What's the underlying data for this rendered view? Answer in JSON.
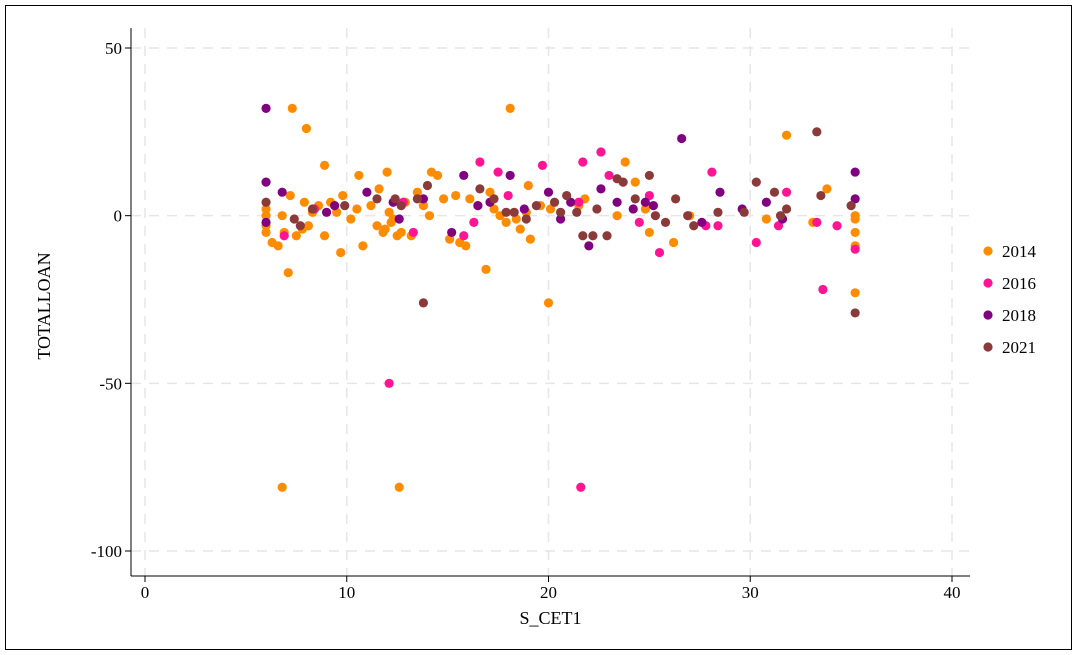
{
  "chart_data": {
    "type": "scatter",
    "title": "",
    "xlabel": "S_CET1",
    "ylabel": "TOTALLOAN",
    "xlim": [
      0,
      40
    ],
    "ylim": [
      -100,
      50
    ],
    "x_ticks": [
      "0",
      "10",
      "20",
      "30",
      "40"
    ],
    "y_ticks": [
      "50",
      "0",
      "-50",
      "-100"
    ],
    "grid": true,
    "legend_position": "right",
    "series": [
      {
        "name": "2014",
        "color": "#FF8C00",
        "points": [
          [
            6,
            -5
          ],
          [
            6,
            -3
          ],
          [
            6,
            0
          ],
          [
            6,
            2
          ],
          [
            6.3,
            -8
          ],
          [
            6.6,
            -9
          ],
          [
            6.8,
            0
          ],
          [
            6.9,
            -5
          ],
          [
            7.1,
            -17
          ],
          [
            7.2,
            6
          ],
          [
            7.3,
            32
          ],
          [
            7.5,
            -6
          ],
          [
            7.8,
            -4
          ],
          [
            7.9,
            4
          ],
          [
            8.0,
            26
          ],
          [
            8.1,
            -3
          ],
          [
            8.3,
            1
          ],
          [
            8.6,
            3
          ],
          [
            8.9,
            -6
          ],
          [
            8.9,
            15
          ],
          [
            9.2,
            4
          ],
          [
            9.5,
            1
          ],
          [
            9.7,
            -11
          ],
          [
            9.8,
            6
          ],
          [
            10.2,
            -1
          ],
          [
            10.5,
            2
          ],
          [
            10.6,
            12
          ],
          [
            10.8,
            -9
          ],
          [
            11.2,
            3
          ],
          [
            11.5,
            -3
          ],
          [
            11.6,
            8
          ],
          [
            11.8,
            -5
          ],
          [
            11.9,
            -4
          ],
          [
            12.0,
            13
          ],
          [
            12.1,
            1
          ],
          [
            12.2,
            -2
          ],
          [
            12.3,
            -1
          ],
          [
            12.5,
            -6
          ],
          [
            12.7,
            -5
          ],
          [
            12.9,
            4
          ],
          [
            13.2,
            -6
          ],
          [
            13.5,
            7
          ],
          [
            13.8,
            3
          ],
          [
            14.1,
            0
          ],
          [
            14.2,
            13
          ],
          [
            14.5,
            12
          ],
          [
            14.8,
            5
          ],
          [
            15.1,
            -7
          ],
          [
            15.4,
            6
          ],
          [
            15.6,
            -8
          ],
          [
            15.9,
            -9
          ],
          [
            16.1,
            5
          ],
          [
            16.5,
            3
          ],
          [
            16.9,
            -16
          ],
          [
            17.1,
            7
          ],
          [
            17.3,
            2
          ],
          [
            17.6,
            0
          ],
          [
            17.9,
            -2
          ],
          [
            18.1,
            32
          ],
          [
            18.4,
            -1
          ],
          [
            18.6,
            -4
          ],
          [
            18.9,
            1
          ],
          [
            19.0,
            9
          ],
          [
            19.1,
            -7
          ],
          [
            19.6,
            3
          ],
          [
            20.0,
            -26
          ],
          [
            20.1,
            2
          ],
          [
            21.5,
            3
          ],
          [
            21.8,
            5
          ],
          [
            23.4,
            0
          ],
          [
            23.8,
            16
          ],
          [
            24.3,
            10
          ],
          [
            24.8,
            2
          ],
          [
            25.0,
            -5
          ],
          [
            26.2,
            -8
          ],
          [
            27.0,
            0
          ],
          [
            30.8,
            -1
          ],
          [
            31.8,
            24
          ],
          [
            33.1,
            -2
          ],
          [
            33.8,
            8
          ],
          [
            35.2,
            -5
          ],
          [
            35.2,
            -9
          ],
          [
            35.2,
            -23
          ],
          [
            35.2,
            0
          ],
          [
            35.2,
            -1
          ],
          [
            6.8,
            -81
          ],
          [
            12.6,
            -81
          ]
        ]
      },
      {
        "name": "2016",
        "color": "#FF1493",
        "points": [
          [
            6.9,
            -6
          ],
          [
            8.4,
            2
          ],
          [
            12.1,
            -50
          ],
          [
            12.8,
            4
          ],
          [
            13.3,
            -5
          ],
          [
            15.8,
            -6
          ],
          [
            16.3,
            -2
          ],
          [
            16.6,
            16
          ],
          [
            17.5,
            13
          ],
          [
            18.0,
            6
          ],
          [
            19.7,
            15
          ],
          [
            21.5,
            4
          ],
          [
            21.7,
            16
          ],
          [
            22.6,
            19
          ],
          [
            23.0,
            12
          ],
          [
            24.5,
            -2
          ],
          [
            25.0,
            6
          ],
          [
            25.5,
            -11
          ],
          [
            27.8,
            -3
          ],
          [
            28.1,
            13
          ],
          [
            28.4,
            -3
          ],
          [
            30.3,
            -8
          ],
          [
            31.4,
            -3
          ],
          [
            31.8,
            7
          ],
          [
            33.3,
            -2
          ],
          [
            33.6,
            -22
          ],
          [
            34.3,
            -3
          ],
          [
            35.2,
            -10
          ],
          [
            21.6,
            -81
          ]
        ]
      },
      {
        "name": "2018",
        "color": "#800080",
        "points": [
          [
            6.0,
            32
          ],
          [
            6.0,
            10
          ],
          [
            6.0,
            -2
          ],
          [
            6.8,
            7
          ],
          [
            9.0,
            1
          ],
          [
            9.4,
            3
          ],
          [
            11.0,
            7
          ],
          [
            12.3,
            4
          ],
          [
            12.6,
            -1
          ],
          [
            13.8,
            5
          ],
          [
            15.2,
            -5
          ],
          [
            15.8,
            12
          ],
          [
            16.5,
            3
          ],
          [
            17.1,
            4
          ],
          [
            18.1,
            12
          ],
          [
            18.8,
            2
          ],
          [
            20.0,
            7
          ],
          [
            20.6,
            -1
          ],
          [
            21.1,
            4
          ],
          [
            22.0,
            -9
          ],
          [
            22.6,
            8
          ],
          [
            23.4,
            4
          ],
          [
            24.2,
            2
          ],
          [
            24.8,
            4
          ],
          [
            25.2,
            3
          ],
          [
            26.6,
            23
          ],
          [
            27.6,
            -2
          ],
          [
            28.5,
            7
          ],
          [
            29.6,
            2
          ],
          [
            30.8,
            4
          ],
          [
            31.6,
            -1
          ],
          [
            35.2,
            13
          ],
          [
            35.2,
            5
          ]
        ]
      },
      {
        "name": "2021",
        "color": "#8B3A3A",
        "points": [
          [
            6.0,
            4
          ],
          [
            7.4,
            -1
          ],
          [
            7.7,
            -3
          ],
          [
            8.3,
            2
          ],
          [
            9.9,
            3
          ],
          [
            11.5,
            5
          ],
          [
            12.4,
            5
          ],
          [
            12.7,
            3
          ],
          [
            13.5,
            5
          ],
          [
            14.0,
            9
          ],
          [
            13.8,
            -26
          ],
          [
            16.6,
            8
          ],
          [
            17.3,
            5
          ],
          [
            17.9,
            1
          ],
          [
            18.3,
            1
          ],
          [
            18.9,
            -1
          ],
          [
            19.4,
            3
          ],
          [
            20.3,
            4
          ],
          [
            20.6,
            1
          ],
          [
            20.9,
            6
          ],
          [
            21.4,
            1
          ],
          [
            21.7,
            -6
          ],
          [
            22.2,
            -6
          ],
          [
            22.4,
            2
          ],
          [
            22.9,
            -6
          ],
          [
            23.4,
            11
          ],
          [
            23.7,
            10
          ],
          [
            24.3,
            5
          ],
          [
            25.0,
            12
          ],
          [
            25.3,
            0
          ],
          [
            25.8,
            -2
          ],
          [
            26.3,
            5
          ],
          [
            26.9,
            0
          ],
          [
            27.2,
            -3
          ],
          [
            28.4,
            1
          ],
          [
            29.7,
            1
          ],
          [
            30.3,
            10
          ],
          [
            31.2,
            7
          ],
          [
            31.5,
            0
          ],
          [
            31.8,
            2
          ],
          [
            33.3,
            25
          ],
          [
            33.5,
            6
          ],
          [
            35.0,
            3
          ],
          [
            35.2,
            -29
          ]
        ]
      }
    ]
  }
}
